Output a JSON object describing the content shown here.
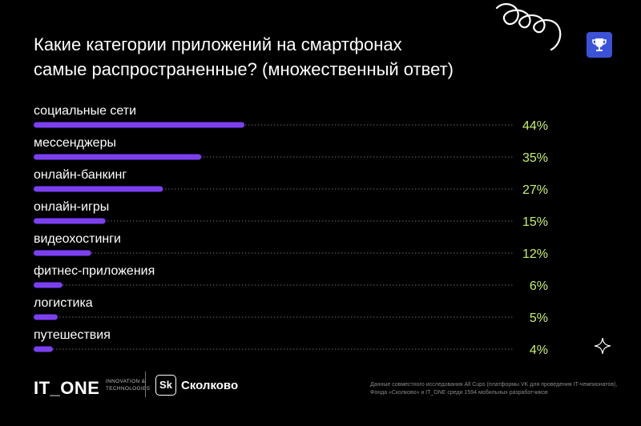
{
  "header": {
    "title": "Какие категории приложений на смартфонах\nсамые распространенные? (множественный ответ)"
  },
  "icons": {
    "trophy": "trophy-icon",
    "spiral": "spiral-decoration-icon",
    "sparkle": "sparkle-icon"
  },
  "colors": {
    "background": "#000000",
    "bar": "#7b3ff2",
    "dots": "#6a6a6a",
    "value": "#c6f06b",
    "badge": "#3b52d8"
  },
  "chart_data": {
    "type": "bar",
    "orientation": "horizontal",
    "title": "Какие категории приложений на смартфонах самые распространенные? (множественный ответ)",
    "categories": [
      "социальные сети",
      "мессенджеры",
      "онлайн-банкинг",
      "онлайн-игры",
      "видеохостинги",
      "фитнес-приложения",
      "логистика",
      "путешествия"
    ],
    "values": [
      44,
      35,
      27,
      15,
      12,
      6,
      5,
      4
    ],
    "value_labels": [
      "44%",
      "35%",
      "27%",
      "15%",
      "12%",
      "6%",
      "5%",
      "4%"
    ],
    "unit": "%",
    "xlim": [
      0,
      100
    ],
    "grid": false,
    "legend": "none"
  },
  "footer": {
    "logo": "IT_ONE",
    "tagline": "INNOVATION & TECHNOLOGIES",
    "partner_badge": "Sk",
    "partner_name": "Сколково",
    "note": "Данные совместного исследования All Cups (платформы VK для проведения IT-чемпионатов), Фонда «Сколково» и IT_ONE среди 1594 мобильных разработчиков"
  }
}
